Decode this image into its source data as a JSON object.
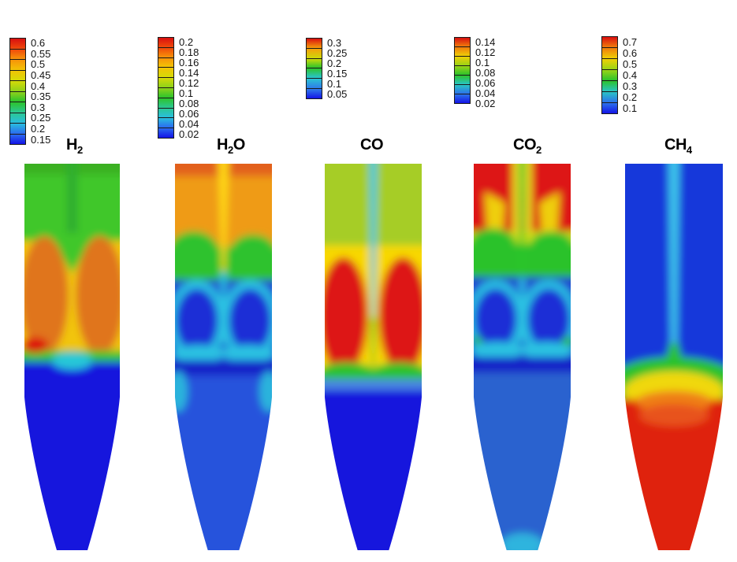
{
  "figure": {
    "background_color": "#ffffff",
    "description": "Five vertical CFD contour plots of species mole fractions in a tapered gasifier/reactor, each with its own rainbow colorbar legend"
  },
  "panels": [
    {
      "id": "h2",
      "label_parts": [
        {
          "text": "H",
          "sub": false
        },
        {
          "text": "2",
          "sub": true
        }
      ],
      "colorbar": {
        "ticks": [
          "0.6",
          "0.55",
          "0.5",
          "0.45",
          "0.4",
          "0.35",
          "0.3",
          "0.25",
          "0.2",
          "0.15"
        ],
        "boundaries": [
          "#d90f0f",
          "#ef4a0b",
          "#f7930a",
          "#f2c405",
          "#d6da08",
          "#8ed11a",
          "#2cc32c",
          "#2bc795",
          "#29bede",
          "#2b6af0",
          "#1414e6"
        ]
      }
    },
    {
      "id": "h2o",
      "label_parts": [
        {
          "text": "H",
          "sub": false
        },
        {
          "text": "2",
          "sub": true
        },
        {
          "text": "O",
          "sub": false
        }
      ],
      "colorbar": {
        "ticks": [
          "0.2",
          "0.18",
          "0.16",
          "0.14",
          "0.12",
          "0.1",
          "0.08",
          "0.06",
          "0.04",
          "0.02"
        ],
        "boundaries": [
          "#d90f0f",
          "#ef4a0b",
          "#f7930a",
          "#f2c405",
          "#d6da08",
          "#8ed11a",
          "#2cc32c",
          "#2bc795",
          "#29bede",
          "#2b6af0",
          "#1414e6"
        ]
      }
    },
    {
      "id": "co",
      "label_parts": [
        {
          "text": "CO",
          "sub": false
        }
      ],
      "colorbar": {
        "ticks": [
          "0.3",
          "0.25",
          "0.2",
          "0.15",
          "0.1",
          "0.05"
        ],
        "boundaries": [
          "#d90f0f",
          "#f59f0b",
          "#ccd90a",
          "#2cc32c",
          "#2ac4d2",
          "#2f7cea",
          "#1414e6"
        ]
      }
    },
    {
      "id": "co2",
      "label_parts": [
        {
          "text": "CO",
          "sub": false
        },
        {
          "text": "2",
          "sub": true
        }
      ],
      "colorbar": {
        "ticks": [
          "0.14",
          "0.12",
          "0.1",
          "0.08",
          "0.06",
          "0.04",
          "0.02"
        ],
        "boundaries": [
          "#d90f0f",
          "#f07c0c",
          "#efcf06",
          "#9ad416",
          "#2cc32c",
          "#2ac4c4",
          "#2c72ec",
          "#1414e6"
        ]
      }
    },
    {
      "id": "ch4",
      "label_parts": [
        {
          "text": "CH",
          "sub": false
        },
        {
          "text": "4",
          "sub": true
        }
      ],
      "colorbar": {
        "ticks": [
          "0.7",
          "0.6",
          "0.5",
          "0.4",
          "0.3",
          "0.2",
          "0.1"
        ],
        "boundaries": [
          "#d90f0f",
          "#f07c0c",
          "#efcf06",
          "#9ad416",
          "#2cc32c",
          "#2ac4c4",
          "#2c72ec",
          "#1414e6"
        ]
      }
    }
  ],
  "chart_data": [
    {
      "type": "heatmap",
      "subtype": "CFD-contour",
      "species": "H2",
      "legend_levels": [
        0.15,
        0.2,
        0.25,
        0.3,
        0.35,
        0.4,
        0.45,
        0.5,
        0.55,
        0.6
      ],
      "colormap": "rainbow, blue=low red=high",
      "geometry": "vertical reactor: rectangular upper section tapering to a conical bottom outlet",
      "field": "green (~0.4) upper zone with darker green axial stripe; two orange (~0.5) annular lobes mid-height separated by a yellow (~0.45) central jet; small red (~0.6) pocket at lower left; sharp green/cyan transition then deep blue (~0.15) filling the whole cone"
    },
    {
      "type": "heatmap",
      "subtype": "CFD-contour",
      "species": "H2O",
      "legend_levels": [
        0.02,
        0.04,
        0.06,
        0.08,
        0.1,
        0.12,
        0.14,
        0.16,
        0.18,
        0.2
      ],
      "colormap": "rainbow, blue=low red=high",
      "geometry": "vertical reactor: rectangular upper section tapering to a conical bottom outlet",
      "field": "orange (~0.16) top with darker orange band at inlet and yellow (~0.14) central jet; wavy green (~0.1) band; below it cyan (~0.07) swirls wrapping two dark blue (~0.04) lobes and a cyan center jet; navy band at cone entrance; medium blue (~0.05) cone with cyan patches at the walls"
    },
    {
      "type": "heatmap",
      "subtype": "CFD-contour",
      "species": "CO",
      "legend_levels": [
        0.05,
        0.1,
        0.15,
        0.2,
        0.25,
        0.3
      ],
      "colormap": "rainbow, blue=low red=high",
      "geometry": "vertical reactor: rectangular upper section tapering to a conical bottom outlet",
      "field": "yellow-green (~0.22) top with a cyan (~0.12) axial jet turning green lower down; two large red (~0.3) lobes with yellow rims filling mid-height; green arcs below lobes, thin light-blue band, then deep blue (~0.05) cone"
    },
    {
      "type": "heatmap",
      "subtype": "CFD-contour",
      "species": "CO2",
      "legend_levels": [
        0.02,
        0.04,
        0.06,
        0.08,
        0.1,
        0.12,
        0.14
      ],
      "colormap": "rainbow, blue=low red=high",
      "geometry": "vertical reactor: rectangular upper section tapering to a conical bottom outlet",
      "field": "red (~0.14) top with green axial jet flanked by yellow, yellow flame-like plumes descending; green (~0.08) wavy band; cyan swirls around two dark blue (~0.03) lobes with cyan center jet; navy band at cone entrance; lighter blue (~0.04) cone with cyan outlet tip and small green specks at the walls"
    },
    {
      "type": "heatmap",
      "subtype": "CFD-contour",
      "species": "CH4",
      "legend_levels": [
        0.1,
        0.2,
        0.3,
        0.4,
        0.5,
        0.6,
        0.7
      ],
      "colormap": "rainbow, blue=low red=high",
      "geometry": "vertical reactor: rectangular upper section tapering to a conical bottom outlet",
      "field": "blue (~0.15) upper section pierced by a cyan (~0.25) axial jet; jet flares into a green-yellow-orange trumpet near the bottom of the straight section; entire cone red/orange (~0.7)"
    }
  ]
}
